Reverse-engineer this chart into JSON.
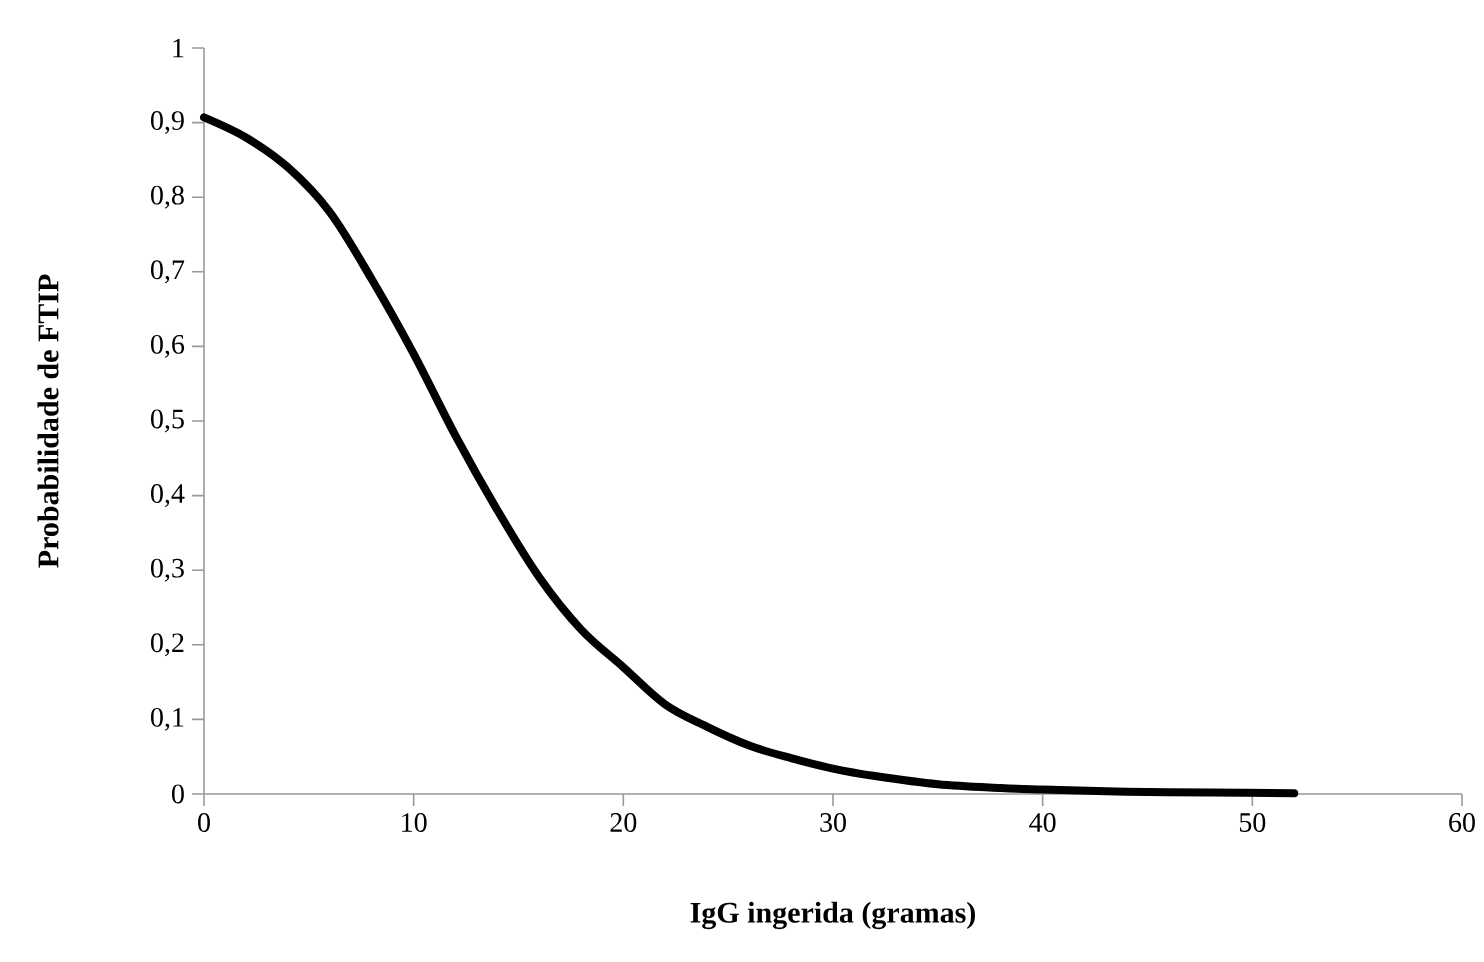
{
  "chart_data": {
    "type": "line",
    "xlabel": "IgG ingerida (gramas)",
    "ylabel": "Probabilidade de  FTIP",
    "xlim": [
      0,
      60
    ],
    "ylim": [
      0,
      1
    ],
    "xticks": [
      0,
      10,
      20,
      30,
      40,
      50,
      60
    ],
    "yticks": [
      0,
      {
        "value": 0.1,
        "label": "0,1"
      },
      {
        "value": 0.2,
        "label": "0,2"
      },
      {
        "value": 0.3,
        "label": "0,3"
      },
      {
        "value": 0.4,
        "label": "0,4"
      },
      {
        "value": 0.5,
        "label": "0,5"
      },
      {
        "value": 0.6,
        "label": "0,6"
      },
      {
        "value": 0.7,
        "label": "0,7"
      },
      {
        "value": 0.8,
        "label": "0,8"
      },
      {
        "value": 0.9,
        "label": "0,9"
      },
      1
    ],
    "grid": false,
    "series": [
      {
        "color": "#000000",
        "x": [
          0,
          2,
          4,
          6,
          8,
          10,
          12,
          14,
          16,
          18,
          20,
          22,
          24,
          26,
          28,
          30,
          32,
          35,
          38,
          40,
          44,
          48,
          52
        ],
        "values": [
          0.907,
          0.88,
          0.84,
          0.78,
          0.69,
          0.59,
          0.48,
          0.38,
          0.29,
          0.22,
          0.17,
          0.12,
          0.09,
          0.065,
          0.048,
          0.034,
          0.024,
          0.013,
          0.008,
          0.006,
          0.003,
          0.002,
          0.001
        ]
      }
    ]
  }
}
